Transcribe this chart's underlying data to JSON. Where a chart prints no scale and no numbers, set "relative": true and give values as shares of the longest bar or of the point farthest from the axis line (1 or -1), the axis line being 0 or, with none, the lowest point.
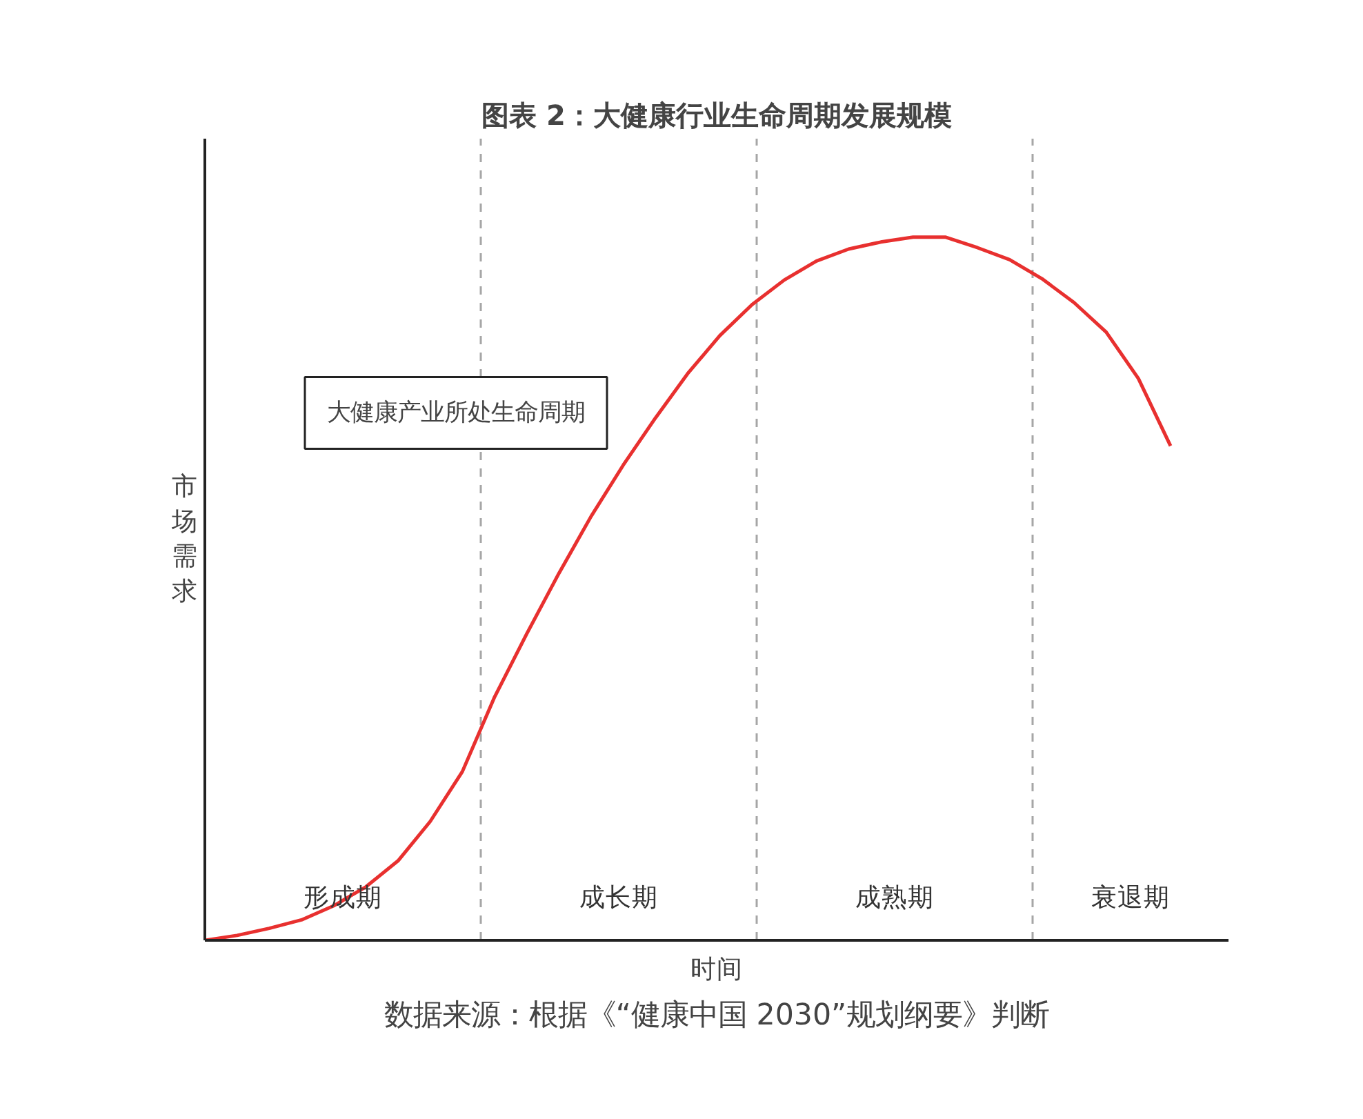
{
  "chart_data": {
    "type": "line",
    "title": "图表 2：大健康行业生命周期发展规模",
    "xlabel": "时间",
    "ylabel": "市场需求",
    "relative": true,
    "categories": [
      null,
      null,
      null,
      null,
      null,
      null,
      null,
      null,
      null,
      null,
      null,
      null,
      null,
      null,
      null,
      null,
      null,
      null,
      null,
      null,
      null,
      null,
      null,
      null,
      null,
      null,
      null,
      null,
      null,
      null,
      null
    ],
    "series": [
      {
        "color": "#e8302f",
        "values": [
          0,
          0.007,
          0.017,
          0.029,
          0.049,
          0.076,
          0.113,
          0.169,
          0.24,
          0.346,
          0.436,
          0.522,
          0.603,
          0.676,
          0.743,
          0.806,
          0.86,
          0.904,
          0.939,
          0.966,
          0.983,
          0.993,
          1.0,
          1.0,
          0.985,
          0.968,
          0.941,
          0.907,
          0.865,
          0.799,
          0.703
        ]
      }
    ],
    "annotations": [
      "大健康产业所处生命周期",
      "形成期",
      "成长期",
      "成熟期",
      "衰退期",
      "数据来源：根据《“健康中国 2030”规划纲要》判断"
    ],
    "grid": "x",
    "marker": "none",
    "line_style": "solid"
  }
}
